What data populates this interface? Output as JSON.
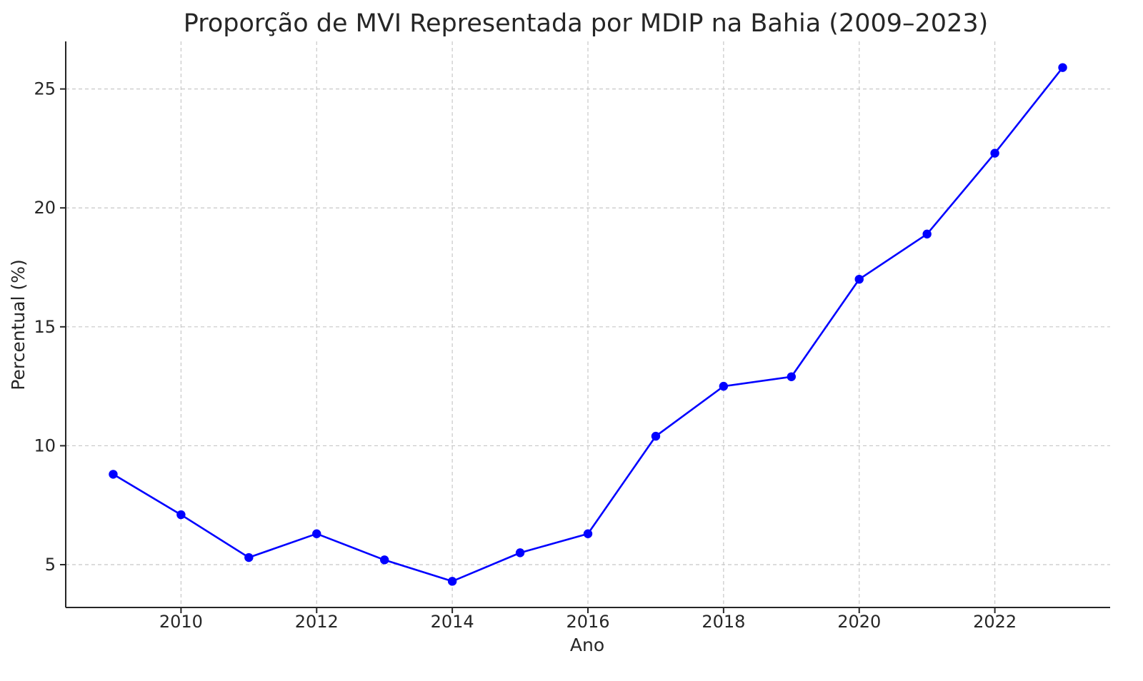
{
  "chart_data": {
    "type": "line",
    "title": "Proporção de MVI Representada por MDIP na Bahia (2009–2023)",
    "xlabel": "Ano",
    "ylabel": "Percentual (%)",
    "x": [
      2009,
      2010,
      2011,
      2012,
      2013,
      2014,
      2015,
      2016,
      2017,
      2018,
      2019,
      2020,
      2021,
      2022,
      2023
    ],
    "series": [
      {
        "values": [
          8.8,
          7.1,
          5.3,
          6.3,
          5.2,
          4.3,
          5.5,
          6.3,
          10.4,
          12.5,
          12.9,
          17.0,
          18.9,
          22.3,
          25.9
        ]
      }
    ],
    "xlim": [
      2008.3,
      2023.7
    ],
    "ylim": [
      3.2,
      27.0
    ],
    "xticks": [
      2010,
      2012,
      2014,
      2016,
      2018,
      2020,
      2022
    ],
    "yticks": [
      5,
      10,
      15,
      20,
      25
    ],
    "grid": true,
    "colors": {
      "series": "#0000ff",
      "grid": "#c8c8c8",
      "axis": "#262626"
    }
  }
}
